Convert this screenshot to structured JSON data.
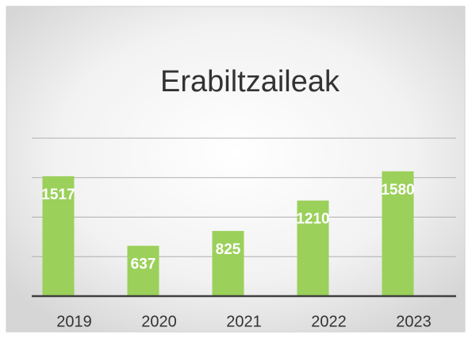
{
  "chart_data": {
    "type": "bar",
    "title": "Erabiltzaileak",
    "categories": [
      "2019",
      "2020",
      "2021",
      "2022",
      "2023"
    ],
    "values": [
      1517,
      637,
      825,
      1210,
      1580
    ],
    "color": "#9bd05a",
    "ylim": [
      0,
      2000
    ],
    "yticks": [
      0,
      500,
      1000,
      1500,
      2000
    ],
    "grid": true
  }
}
